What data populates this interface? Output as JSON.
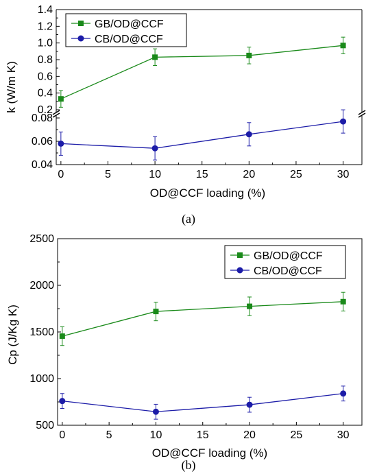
{
  "chart_data": [
    {
      "type": "line",
      "panel_label": "(a)",
      "xlabel": "OD@CCF loading (%)",
      "ylabel": "k (W/m K)",
      "x": [
        0,
        10,
        20,
        30
      ],
      "xlim": [
        -0.5,
        32
      ],
      "xticks": [
        "0",
        "5",
        "10",
        "15",
        "20",
        "25",
        "30"
      ],
      "broken_axis": true,
      "upper_ylim": [
        0.2,
        1.4
      ],
      "upper_yticks": [
        "0.2",
        "0.4",
        "0.6",
        "0.8",
        "1.0",
        "1.2",
        "1.4"
      ],
      "lower_ylim": [
        0.04,
        0.08
      ],
      "lower_yticks": [
        "0.04",
        "0.06",
        "0.08"
      ],
      "legend_position": "top-left",
      "series": [
        {
          "name": "GB/OD@CCF",
          "color": "#1a8a1a",
          "marker": "square",
          "values": [
            0.33,
            0.83,
            0.85,
            0.97
          ],
          "errors": [
            0.1,
            0.1,
            0.1,
            0.1
          ],
          "segment": "upper"
        },
        {
          "name": "CB/OD@CCF",
          "color": "#1c1ca8",
          "marker": "circle",
          "values": [
            0.058,
            0.054,
            0.066,
            0.077
          ],
          "errors": [
            0.01,
            0.01,
            0.01,
            0.01
          ],
          "segment": "lower"
        }
      ]
    },
    {
      "type": "line",
      "panel_label": "(b)",
      "xlabel": "OD@CCF loading (%)",
      "ylabel": "Cp (J/Kg K)",
      "x": [
        0,
        10,
        20,
        30
      ],
      "xlim": [
        -0.5,
        32
      ],
      "xticks": [
        "0",
        "5",
        "10",
        "15",
        "20",
        "25",
        "30"
      ],
      "ylim": [
        500,
        2500
      ],
      "yticks": [
        "500",
        "1000",
        "1500",
        "2000",
        "2500"
      ],
      "legend_position": "top-right",
      "series": [
        {
          "name": "GB/OD@CCF",
          "color": "#1a8a1a",
          "marker": "square",
          "values": [
            1455,
            1720,
            1775,
            1825
          ],
          "errors": [
            100,
            100,
            100,
            100
          ]
        },
        {
          "name": "CB/OD@CCF",
          "color": "#1c1ca8",
          "marker": "circle",
          "values": [
            760,
            645,
            720,
            840
          ],
          "errors": [
            80,
            80,
            80,
            80
          ]
        }
      ]
    }
  ]
}
